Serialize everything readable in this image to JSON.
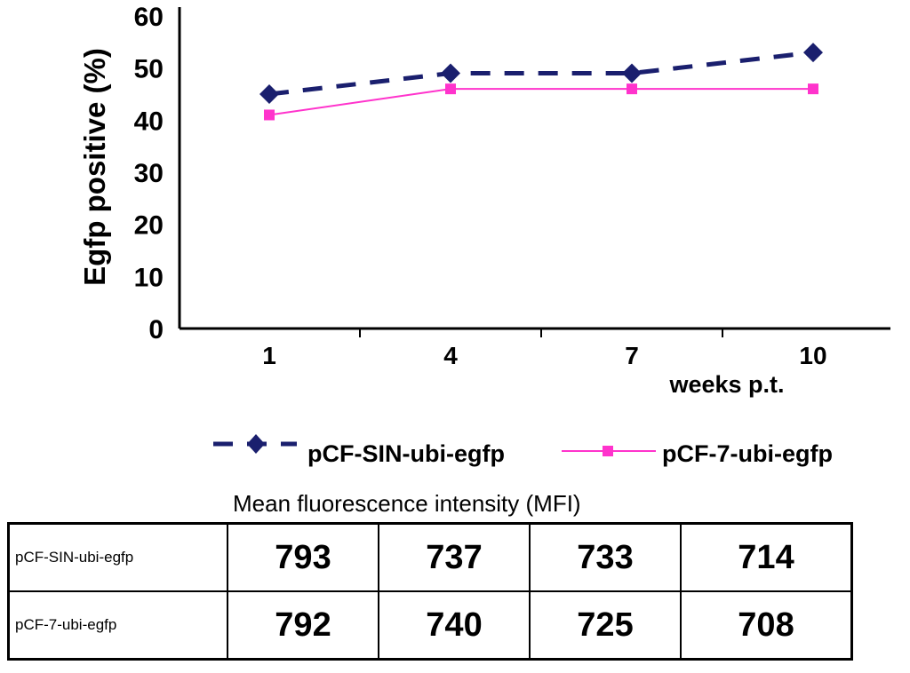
{
  "chart_data": {
    "type": "line",
    "ylabel": "Egfp positive (%)",
    "xlabel": "weeks p.t.",
    "x": [
      "1",
      "4",
      "7",
      "10"
    ],
    "ylim": [
      0,
      60
    ],
    "yticks": [
      "0",
      "10",
      "20",
      "30",
      "40",
      "50",
      "60"
    ],
    "series": [
      {
        "name": "pCF-SIN-ubi-egfp",
        "values": [
          45,
          49,
          49,
          53
        ],
        "color": "#1a1f6e",
        "style": "dashed",
        "marker": "diamond"
      },
      {
        "name": "pCF-7-ubi-egfp",
        "values": [
          41,
          46,
          46,
          46
        ],
        "color": "#ff33cc",
        "style": "solid",
        "marker": "square"
      }
    ]
  },
  "mfi_table": {
    "title": "Mean fluorescence intensity (MFI)",
    "rows": [
      {
        "label": "pCF-SIN-ubi-egfp",
        "values": [
          "793",
          "737",
          "733",
          "714"
        ]
      },
      {
        "label": "pCF-7-ubi-egfp",
        "values": [
          "792",
          "740",
          "725",
          "708"
        ]
      }
    ]
  }
}
